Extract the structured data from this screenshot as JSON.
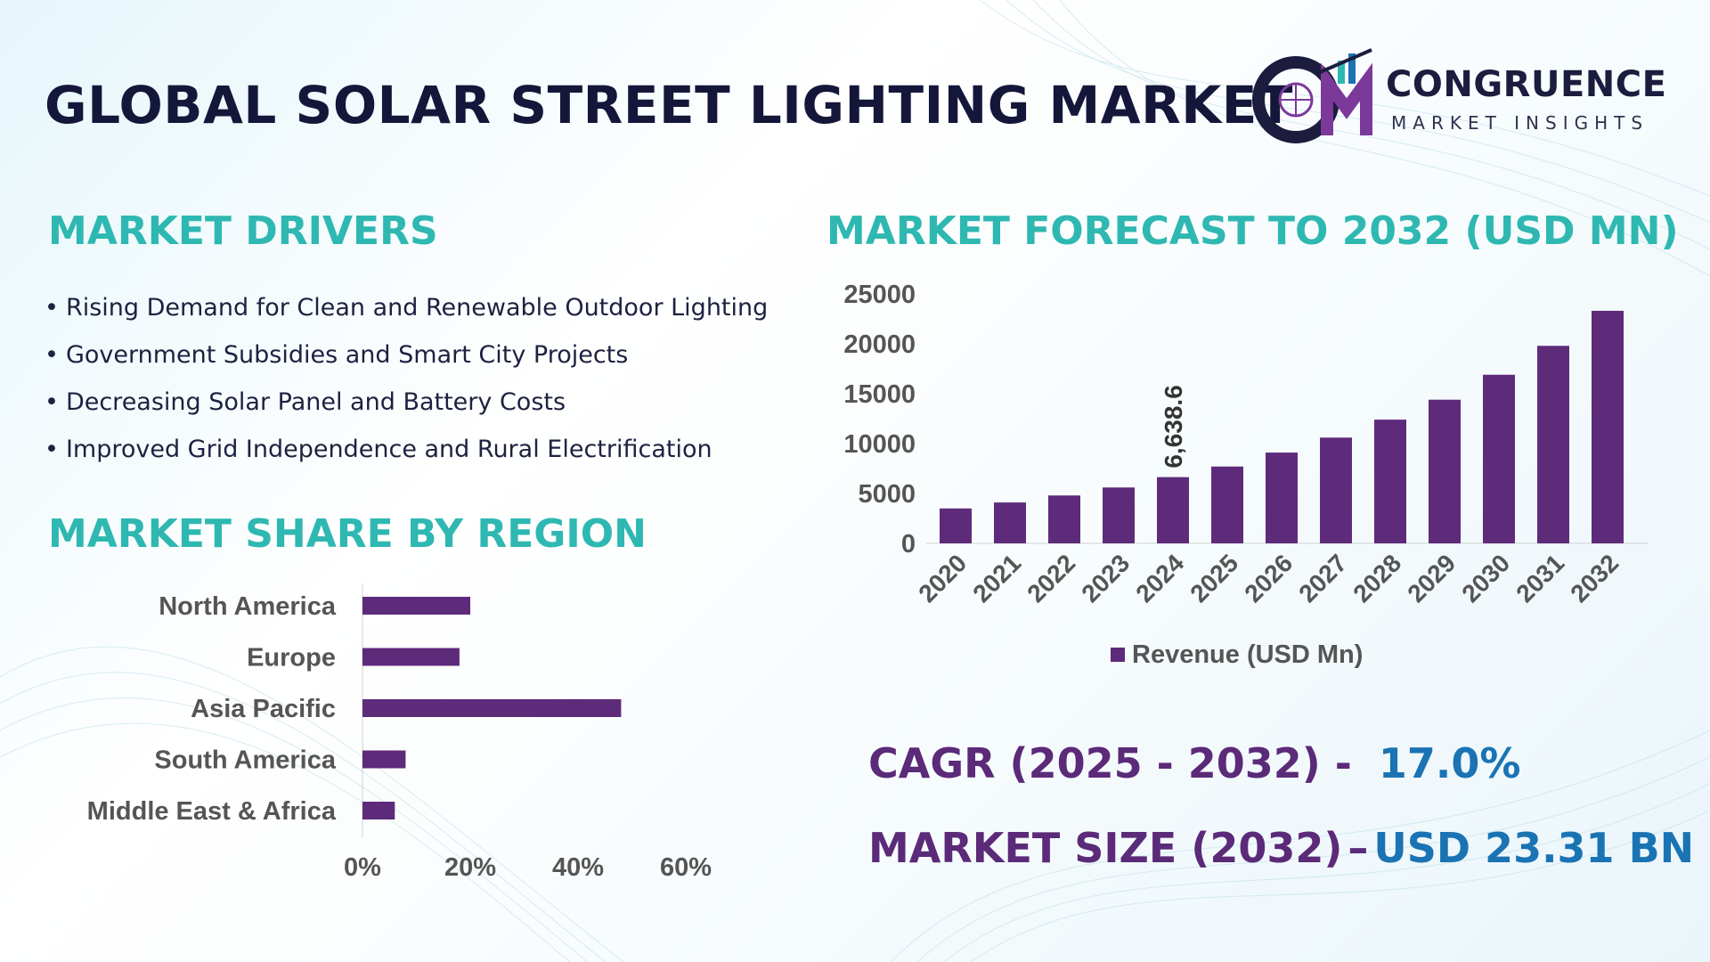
{
  "header": {
    "title": "GLOBAL SOLAR STREET LIGHTING MARKET",
    "logo_word": "CONGRUENCE",
    "logo_sub": "MARKET INSIGHTS"
  },
  "drivers": {
    "title": "MARKET DRIVERS",
    "bullet": "•",
    "items": [
      "Rising Demand for Clean and Renewable Outdoor Lighting",
      "Government Subsidies and Smart City Projects",
      "Decreasing Solar Panel and Battery Costs",
      "Improved Grid Independence and Rural Electrification"
    ]
  },
  "region": {
    "title": "MARKET SHARE BY REGION"
  },
  "forecast": {
    "title": "MARKET FORECAST TO 2032 (USD MN)"
  },
  "stats": {
    "cagr_label": "CAGR (2025 - 2032) -",
    "cagr_value": "17.0%",
    "size_label": "MARKET SIZE (2032)",
    "size_sep": "–",
    "size_value": "USD 23.31 BN"
  },
  "colors": {
    "bar": "#5e2b7b",
    "title_teal": "#2eb8b1",
    "stat_purple": "#5b2a78",
    "stat_blue": "#1a73b3",
    "axis_text": "#555555"
  },
  "chart_data": [
    {
      "type": "bar",
      "orientation": "horizontal",
      "categories": [
        "North America",
        "Europe",
        "Asia Pacific",
        "South America",
        "Middle East & Africa"
      ],
      "values": [
        20,
        18,
        48,
        8,
        6
      ],
      "xlim": [
        0,
        60
      ],
      "xticks": [
        "0%",
        "20%",
        "40%",
        "60%"
      ],
      "grid": false,
      "legend": "none"
    },
    {
      "type": "bar",
      "categories": [
        "2020",
        "2021",
        "2022",
        "2023",
        "2024",
        "2025",
        "2026",
        "2027",
        "2028",
        "2029",
        "2030",
        "2031",
        "2032"
      ],
      "series": [
        {
          "name": "Revenue (USD Mn)",
          "values": [
            3500,
            4100,
            4800,
            5600,
            6638.6,
            7700,
            9100,
            10600,
            12400,
            14400,
            16900,
            19800,
            23310
          ]
        }
      ],
      "data_labels": [
        {
          "category": "2024",
          "text": "6,638.6"
        }
      ],
      "ylim": [
        0,
        25000
      ],
      "yticks": [
        "0",
        "5000",
        "10000",
        "15000",
        "20000",
        "25000"
      ],
      "grid": false,
      "legend": "bottom"
    }
  ]
}
